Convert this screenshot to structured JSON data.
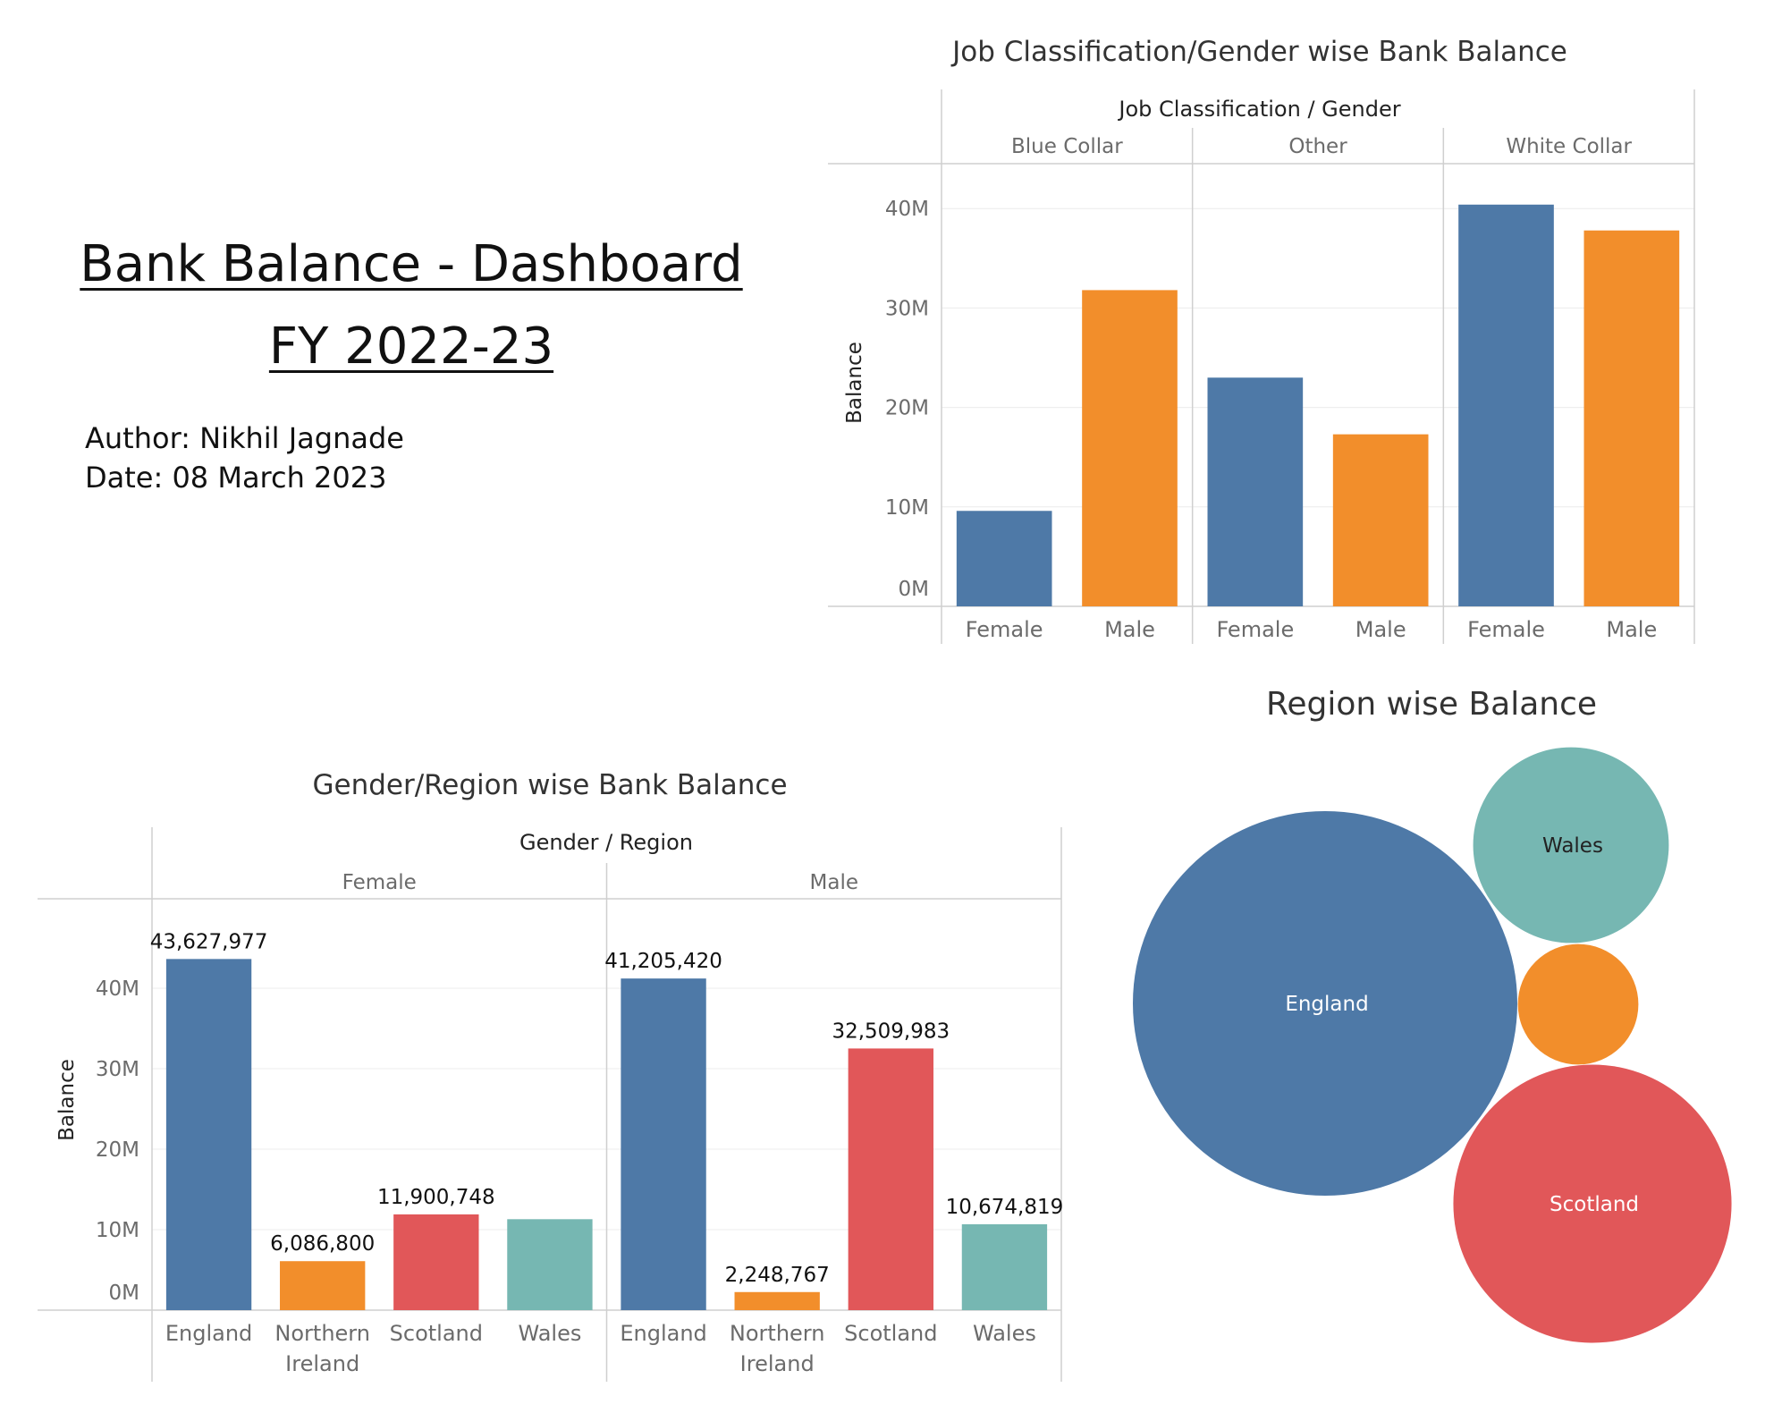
{
  "dashboard": {
    "title_line1": "Bank Balance - Dashboard",
    "title_line2": "FY 2022-23",
    "author": "Author: Nikhil Jagnade",
    "date": "Date: 08 March 2023"
  },
  "colors": {
    "england": "#4e79a7",
    "northern_ireland": "#f28e2b",
    "scotland": "#e15759",
    "wales": "#76b7b2",
    "female": "#4e79a7",
    "male": "#f28e2b"
  },
  "chart_data": [
    {
      "id": "job_gender",
      "type": "bar",
      "title": "Job Classification/Gender wise Bank Balance",
      "header_title": "Job Classification  /  Gender",
      "groups": [
        "Blue Collar",
        "Other",
        "White Collar"
      ],
      "categories": [
        "Female",
        "Male"
      ],
      "series": [
        {
          "group": "Blue Collar",
          "values": [
            9600000,
            31800000
          ]
        },
        {
          "group": "Other",
          "values": [
            23000000,
            17300000
          ]
        },
        {
          "group": "White Collar",
          "values": [
            40400000,
            37800000
          ]
        }
      ],
      "ylabel": "Balance",
      "ylim": [
        0,
        42000000
      ],
      "yticks": [
        0,
        10000000,
        20000000,
        30000000,
        40000000
      ],
      "ytick_labels": [
        "0M",
        "10M",
        "20M",
        "30M",
        "40M"
      ],
      "grid": true
    },
    {
      "id": "gender_region",
      "type": "bar",
      "title": "Gender/Region wise Bank Balance",
      "header_title": "Gender  /  Region",
      "groups": [
        "Female",
        "Male"
      ],
      "categories": [
        "England",
        "Northern Ireland",
        "Scotland",
        "Wales"
      ],
      "series": [
        {
          "group": "Female",
          "values": [
            43627977,
            6086800,
            11900748,
            11300000
          ],
          "labels": [
            "43,627,977",
            "6,086,800",
            "11,900,748",
            ""
          ]
        },
        {
          "group": "Male",
          "values": [
            41205420,
            2248767,
            32509983,
            10674819
          ],
          "labels": [
            "41,205,420",
            "2,248,767",
            "32,509,983",
            "10,674,819"
          ]
        }
      ],
      "ylabel": "Balance",
      "ylim": [
        0,
        48000000
      ],
      "yticks": [
        0,
        10000000,
        20000000,
        30000000,
        40000000
      ],
      "ytick_labels": [
        "0M",
        "10M",
        "20M",
        "30M",
        "40M"
      ],
      "grid": true
    },
    {
      "id": "region_bubbles",
      "type": "bubble",
      "title": "Region wise Balance",
      "items": [
        {
          "name": "England",
          "label": "England",
          "value": 84833397
        },
        {
          "name": "Scotland",
          "label": "Scotland",
          "value": 44410731
        },
        {
          "name": "Wales",
          "label": "Wales",
          "value": 21974819
        },
        {
          "name": "Northern Ireland",
          "label": "",
          "value": 8335567
        }
      ]
    }
  ]
}
